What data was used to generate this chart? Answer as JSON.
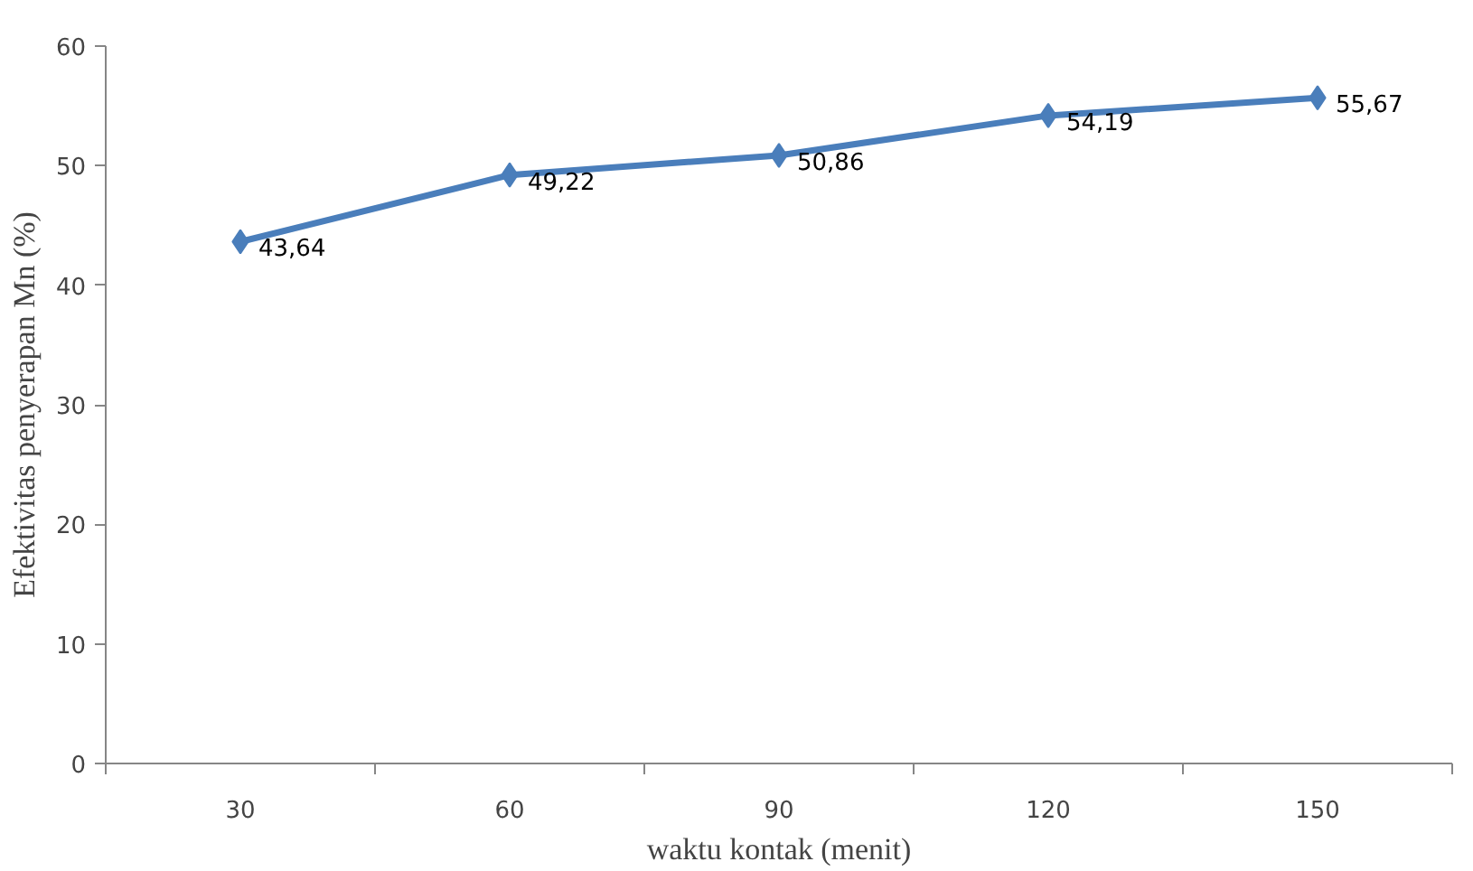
{
  "chart_data": {
    "type": "line",
    "xlabel": "waktu kontak (menit)",
    "ylabel": "Efektivitas penyerapan Mn (%)",
    "categories": [
      "30",
      "60",
      "90",
      "120",
      "150"
    ],
    "series": [
      {
        "color": "#4a7ebb",
        "values": [
          43.64,
          49.22,
          50.86,
          54.19,
          55.67
        ],
        "value_labels": [
          "43,64",
          "49,22",
          "50,86",
          "54,19",
          "55,67"
        ]
      }
    ],
    "ylim": [
      0,
      60
    ],
    "yticks": [
      0,
      10,
      20,
      30,
      40,
      50,
      60
    ],
    "grid": false,
    "marker": "diamond",
    "line_style": "solid"
  }
}
